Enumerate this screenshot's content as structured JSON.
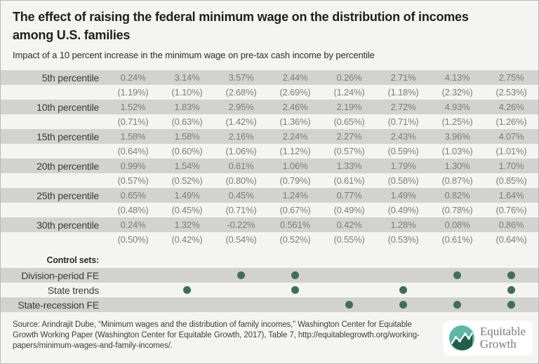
{
  "header": {
    "title": "The effect of raising the federal minimum wage on the distribution of incomes among U.S. families",
    "subtitle": "Impact of a 10 percent increase in the minimum wage on pre-tax cash income by percentile"
  },
  "chart_data": {
    "type": "table",
    "title": "The effect of raising the federal minimum wage on the distribution of incomes among U.S. families",
    "subtitle": "Impact of a 10 percent increase in the minimum wage on pre-tax cash income by percentile",
    "num_model_columns": 8,
    "rows": [
      {
        "label": "5th percentile",
        "estimates": [
          "0.24%",
          "3.14%",
          "3.57%",
          "2.44%",
          "0.26%",
          "2.71%",
          "4.13%",
          "2.75%"
        ],
        "std_errors": [
          "(1.19%)",
          "(1.10%)",
          "(2.68%)",
          "(2.69%)",
          "(1.24%)",
          "(1.18%)",
          "(2.32%)",
          "(2.53%)"
        ]
      },
      {
        "label": "10th percentile",
        "estimates": [
          "1.52%",
          "1.83%",
          "2.95%",
          "2.46%",
          "2.19%",
          "2.72%",
          "4.93%",
          "4.26%"
        ],
        "std_errors": [
          "(0.71%)",
          "(0.63%)",
          "(1.42%)",
          "(1.36%)",
          "(0.65%)",
          "(0.71%)",
          "(1.25%)",
          "(1.26%)"
        ]
      },
      {
        "label": "15th percentile",
        "estimates": [
          "1.58%",
          "1.58%",
          "2.16%",
          "2.24%",
          "2.27%",
          "2.43%",
          "3.96%",
          "4.07%"
        ],
        "std_errors": [
          "(0.64%)",
          "(0.60%)",
          "(1.06%)",
          "(1.12%)",
          "(0.57%)",
          "(0.59%)",
          "(1.03%)",
          "(1.01%)"
        ]
      },
      {
        "label": "20th percentile",
        "estimates": [
          "0.99%",
          "1.54%",
          "0.61%",
          "1.06%",
          "1.33%",
          "1.79%",
          "1.30%",
          "1.70%"
        ],
        "std_errors": [
          "(0.57%)",
          "(0.52%)",
          "(0.80%)",
          "(0.79%)",
          "(0.61%)",
          "(0.58%)",
          "(0.87%)",
          "(0.85%)"
        ]
      },
      {
        "label": "25th percentile",
        "estimates": [
          "0.65%",
          "1.49%",
          "0.45%",
          "1.24%",
          "0.77%",
          "1.49%",
          "0.82%",
          "1.64%"
        ],
        "std_errors": [
          "(0.48%)",
          "(0.45%)",
          "(0.71%)",
          "(0.67%)",
          "(0.49%)",
          "(0.49%)",
          "(0.78%)",
          "(0.76%)"
        ]
      },
      {
        "label": "30th percentile",
        "estimates": [
          "0.24%",
          "1.32%",
          "-0.22%",
          "0.561%",
          "0.42%",
          "1.28%",
          "0.08%",
          "0.86%"
        ],
        "std_errors": [
          "(0.50%)",
          "(0.42%)",
          "(0.54%)",
          "(0.52%)",
          "(0.55%)",
          "(0.53%)",
          "(0.61%)",
          "(0.64%)"
        ]
      }
    ],
    "control_sets": {
      "label": "Control sets:",
      "rows": [
        {
          "label": "Division-period FE",
          "columns_with_dot": [
            3,
            4,
            7,
            8
          ]
        },
        {
          "label": "State trends",
          "columns_with_dot": [
            2,
            4,
            6,
            8
          ]
        },
        {
          "label": "State-recession FE",
          "columns_with_dot": [
            5,
            6,
            7,
            8
          ]
        }
      ]
    },
    "layout": {
      "striped_rows": true,
      "stripe_color": "#d2d2d0",
      "dot_color": "#3f6f58"
    }
  },
  "footer": {
    "source": "Source: Arindrajit Dube, “Minimum wages and the distribution of family incomes,” Washington Center for Equitable Growth Working Paper (Washington Center for Equitable Growth, 2017), Table 7, http://equitablegrowth.org/working-papers/minimum-wages-and-family-incomes/.",
    "logo": {
      "line1": "Equitable",
      "line2": "Growth"
    }
  },
  "colors": {
    "background": "#f4f4f2",
    "stripe": "#d2d2d0",
    "dot_green": "#3f6f58",
    "logo_teal": "#5cb7a4",
    "logo_dark_green": "#215e46",
    "title_text": "#1f1f1f",
    "data_text": "#7c7c7c",
    "label_text": "#3a3a3a"
  }
}
